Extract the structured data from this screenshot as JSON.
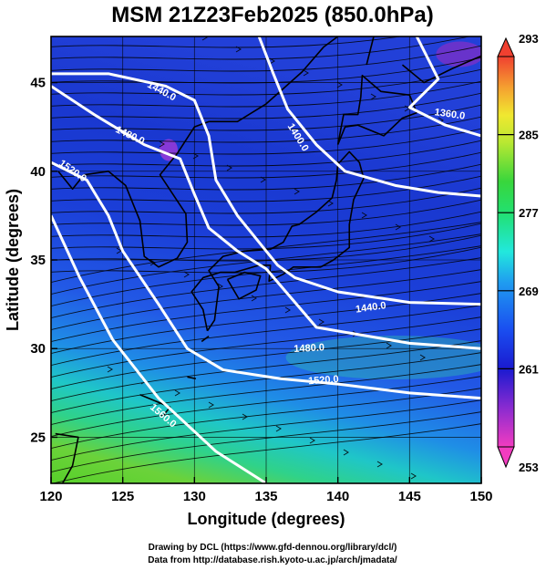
{
  "chart_data": {
    "type": "heatmap",
    "title": "MSM 21Z23Feb2025 (850.0hPa)",
    "xlabel": "Longitude (degrees)",
    "ylabel": "Latitude  (degrees)",
    "xlim": [
      120,
      150
    ],
    "ylim": [
      22.4,
      47.6
    ],
    "x_ticks": [
      120,
      125,
      130,
      135,
      140,
      145,
      150
    ],
    "y_ticks": [
      25,
      30,
      35,
      40,
      45
    ],
    "grid": true,
    "colorbar": {
      "range": [
        253,
        293
      ],
      "ticks": [
        253,
        261,
        269,
        277,
        285,
        293
      ],
      "placement": "right",
      "extend": "both"
    },
    "contours": [
      {
        "label": "1360.0",
        "points": [
          [
            145.5,
            47.6
          ],
          [
            147,
            45.2
          ],
          [
            145,
            43.6
          ],
          [
            147.5,
            42.6
          ],
          [
            150,
            42
          ]
        ]
      },
      {
        "label": "1400.0",
        "points": [
          [
            134.5,
            47.6
          ],
          [
            135.5,
            45.5
          ],
          [
            136.5,
            43.5
          ],
          [
            138.5,
            41.5
          ],
          [
            140.5,
            40
          ],
          [
            144,
            39.2
          ],
          [
            147,
            38.8
          ],
          [
            150,
            38.6
          ]
        ]
      },
      {
        "label": "1440.0",
        "points": [
          [
            120,
            45.5
          ],
          [
            124,
            45.5
          ],
          [
            128,
            44.8
          ],
          [
            130,
            44
          ],
          [
            131,
            42
          ],
          [
            131.5,
            39.5
          ],
          [
            133,
            37.5
          ],
          [
            134.5,
            36
          ],
          [
            135.8,
            34.7
          ],
          [
            137,
            34
          ],
          [
            140,
            33.2
          ],
          [
            145,
            32.6
          ],
          [
            150,
            32.5
          ]
        ]
      },
      {
        "label": "1480.0",
        "points": [
          [
            120,
            44.8
          ],
          [
            123,
            43.2
          ],
          [
            126.5,
            41.5
          ],
          [
            129,
            40.7
          ],
          [
            130,
            38.7
          ],
          [
            131,
            36.8
          ],
          [
            133,
            35.5
          ],
          [
            135,
            34.5
          ],
          [
            138.5,
            31.2
          ],
          [
            145,
            30.3
          ],
          [
            150,
            30
          ]
        ]
      },
      {
        "label": "1520.0",
        "points": [
          [
            120,
            40.5
          ],
          [
            122.5,
            39.5
          ],
          [
            124,
            37.5
          ],
          [
            125,
            35.5
          ],
          [
            127.5,
            32.5
          ],
          [
            129.5,
            30
          ],
          [
            132,
            28.8
          ],
          [
            136,
            28.3
          ],
          [
            140,
            28
          ],
          [
            145,
            27.5
          ],
          [
            150,
            27.2
          ]
        ]
      },
      {
        "label": "1560.0",
        "points": [
          [
            120,
            37.5
          ],
          [
            122,
            34
          ],
          [
            124.3,
            30.5
          ],
          [
            127.5,
            27.2
          ],
          [
            131.5,
            24.2
          ],
          [
            135,
            22.4
          ]
        ]
      }
    ],
    "contour_labels": [
      {
        "text": "1440.0",
        "at": [
          127.7,
          44.5
        ],
        "angle": 28
      },
      {
        "text": "1480.0",
        "at": [
          125.5,
          42.0
        ],
        "angle": 25
      },
      {
        "text": "1400.0",
        "at": [
          137.2,
          41.9
        ],
        "angle": 58
      },
      {
        "text": "1360.0",
        "at": [
          147.8,
          43.2
        ],
        "angle": 8
      },
      {
        "text": "1520.0",
        "at": [
          121.5,
          40.0
        ],
        "angle": 35
      },
      {
        "text": "1440.0",
        "at": [
          142.3,
          32.3
        ],
        "angle": -8
      },
      {
        "text": "1480.0",
        "at": [
          138.0,
          30.0
        ],
        "angle": -3
      },
      {
        "text": "1520.0",
        "at": [
          139.0,
          28.2
        ],
        "angle": -4
      },
      {
        "text": "1560.0",
        "at": [
          127.8,
          26.2
        ],
        "angle": 40
      }
    ]
  },
  "credit_line1": "Drawing by DCL (https://www.gfd-dennou.org/library/dcl/)",
  "credit_line2": "Data from http://database.rish.kyoto-u.ac.jp/arch/jmadata/"
}
